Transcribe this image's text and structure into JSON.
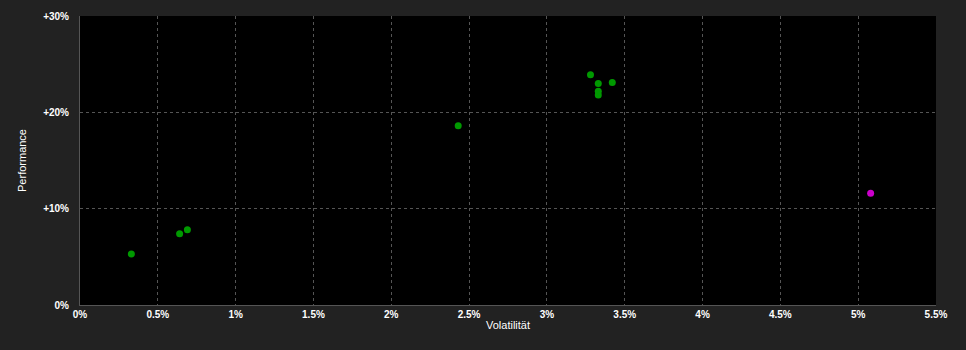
{
  "chart_data": {
    "type": "scatter",
    "x_label": "Volatilität",
    "y_label": "Performance",
    "x": [
      0.33,
      0.64,
      0.69,
      2.43,
      3.28,
      3.33,
      3.33,
      3.33,
      3.42,
      5.08
    ],
    "values": [
      5.3,
      7.4,
      7.8,
      18.6,
      23.9,
      23.0,
      22.2,
      21.8,
      23.1,
      11.6
    ],
    "colors": [
      "#009900",
      "#009900",
      "#009900",
      "#009900",
      "#009900",
      "#009900",
      "#009900",
      "#009900",
      "#009900",
      "#cc00cc"
    ],
    "marker": "circle",
    "xlim": [
      0,
      5.5
    ],
    "xticks": [
      {
        "value": 0,
        "label": "0%"
      },
      {
        "value": 0.5,
        "label": "0.5%"
      },
      {
        "value": 1,
        "label": "1%"
      },
      {
        "value": 1.5,
        "label": "1.5%"
      },
      {
        "value": 2,
        "label": "2%"
      },
      {
        "value": 2.5,
        "label": "2.5%"
      },
      {
        "value": 3,
        "label": "3%"
      },
      {
        "value": 3.5,
        "label": "3.5%"
      },
      {
        "value": 4,
        "label": "4%"
      },
      {
        "value": 4.5,
        "label": "4.5%"
      },
      {
        "value": 5,
        "label": "5%"
      },
      {
        "value": 5.5,
        "label": "5.5%"
      }
    ],
    "ylim": [
      0,
      30
    ],
    "yticks": [
      {
        "value": 0,
        "label": "0%"
      },
      {
        "value": 10,
        "label": "+10%"
      },
      {
        "value": 20,
        "label": "+20%"
      },
      {
        "value": 30,
        "label": "+30%"
      }
    ],
    "grid": true
  }
}
